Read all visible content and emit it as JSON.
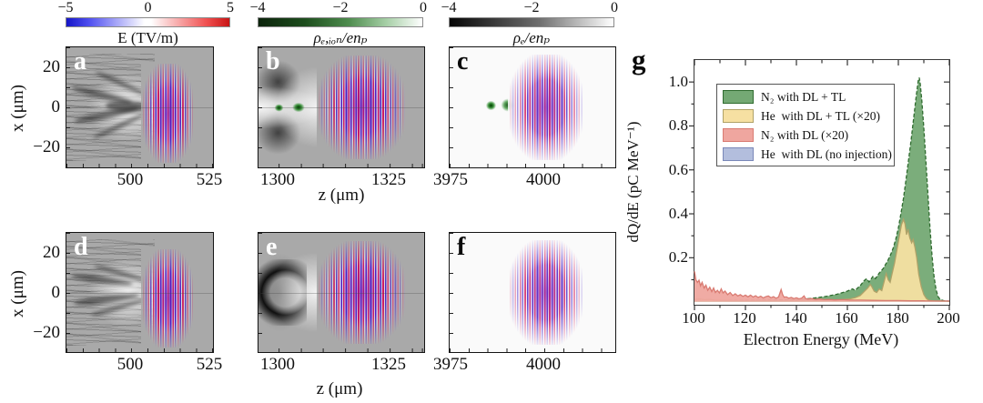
{
  "figure": {
    "colorbars": [
      {
        "ticks": [
          "−5",
          "0",
          "5"
        ],
        "label": "E (TV/m)"
      },
      {
        "ticks": [
          "−4",
          "−2",
          "0"
        ],
        "label": "ρₑ,ᵢₒₙ/enₚ"
      },
      {
        "ticks": [
          "−4",
          "−2",
          "0"
        ],
        "label": "ρₑ/enₚ"
      }
    ],
    "panels": {
      "a": {
        "label": "a",
        "x_ticks": [
          "500",
          "525"
        ],
        "y_ticks": [
          "20",
          "0",
          "−20"
        ],
        "y_label": "x (μm)"
      },
      "b": {
        "label": "b",
        "x_ticks": [
          "1300",
          "1325"
        ],
        "x_label": "z (μm)"
      },
      "c": {
        "label": "c",
        "x_ticks": [
          "3975",
          "4000"
        ]
      },
      "d": {
        "label": "d",
        "x_ticks": [
          "500",
          "525"
        ],
        "y_ticks": [
          "20",
          "0",
          "−20"
        ],
        "y_label": "x (μm)"
      },
      "e": {
        "label": "e",
        "x_ticks": [
          "1300",
          "1325"
        ],
        "x_label": "z (μm)"
      },
      "f": {
        "label": "f",
        "x_ticks": [
          "3975",
          "4000"
        ]
      },
      "g": {
        "label": "g"
      }
    }
  },
  "chart_data": {
    "type": "area",
    "title": "",
    "xlabel": "Electron Energy (MeV)",
    "ylabel": "dQ/dE (pC MeV⁻¹)",
    "xlim": [
      100,
      200
    ],
    "ylim": [
      -0.014,
      1.1
    ],
    "x_major_ticks": [
      100,
      120,
      140,
      160,
      180,
      200
    ],
    "x_minor_step": 10,
    "y_major_ticks": [
      0.2,
      0.4,
      0.6,
      0.8,
      1.0
    ],
    "y_minor_step": 0.1,
    "grid": false,
    "legend_position": "upper-left-inside",
    "legend_order": [
      1,
      2,
      3,
      0
    ],
    "series": [
      {
        "name": "He  with DL (no injection)",
        "fill": "#b3bedd",
        "edge": "#7a88b8",
        "dash": false,
        "points": [
          [
            100,
            0.003
          ],
          [
            200,
            0.003
          ]
        ]
      },
      {
        "name": "N₂ with DL + TL",
        "fill": "#74a974",
        "edge": "#2f6b2f",
        "dash": true,
        "points": [
          [
            100,
            0.004
          ],
          [
            110,
            0.005
          ],
          [
            120,
            0.006
          ],
          [
            130,
            0.007
          ],
          [
            138,
            0.009
          ],
          [
            144,
            0.013
          ],
          [
            148,
            0.018
          ],
          [
            152,
            0.025
          ],
          [
            156,
            0.034
          ],
          [
            160,
            0.048
          ],
          [
            162,
            0.058
          ],
          [
            163,
            0.052
          ],
          [
            165,
            0.072
          ],
          [
            166.5,
            0.095
          ],
          [
            167.5,
            0.105
          ],
          [
            168.5,
            0.09
          ],
          [
            170,
            0.115
          ],
          [
            171,
            0.105
          ],
          [
            172.5,
            0.13
          ],
          [
            174,
            0.15
          ],
          [
            175,
            0.17
          ],
          [
            176,
            0.19
          ],
          [
            177,
            0.215
          ],
          [
            178,
            0.245
          ],
          [
            179,
            0.285
          ],
          [
            180,
            0.335
          ],
          [
            181,
            0.4
          ],
          [
            182,
            0.47
          ],
          [
            183,
            0.555
          ],
          [
            184,
            0.645
          ],
          [
            185,
            0.735
          ],
          [
            186,
            0.835
          ],
          [
            187,
            0.935
          ],
          [
            187.8,
            1.005
          ],
          [
            188.2,
            1.02
          ],
          [
            188.6,
            0.99
          ],
          [
            189.2,
            0.915
          ],
          [
            190,
            0.79
          ],
          [
            190.8,
            0.645
          ],
          [
            191.6,
            0.49
          ],
          [
            192.4,
            0.34
          ],
          [
            193.2,
            0.21
          ],
          [
            194,
            0.115
          ],
          [
            194.8,
            0.055
          ],
          [
            195.6,
            0.022
          ],
          [
            196.5,
            0.009
          ],
          [
            198,
            0.004
          ],
          [
            200,
            0.002
          ]
        ]
      },
      {
        "name": "He  with DL + TL (×20)",
        "fill": "#f6e0a2",
        "edge": "#b0a268",
        "dash": false,
        "points": [
          [
            100,
            0.01
          ],
          [
            102,
            0.012
          ],
          [
            104,
            0.009
          ],
          [
            106,
            0.011
          ],
          [
            108,
            0.007
          ],
          [
            110,
            0.006
          ],
          [
            115,
            0.004
          ],
          [
            120,
            0.003
          ],
          [
            130,
            0.003
          ],
          [
            140,
            0.003
          ],
          [
            148,
            0.004
          ],
          [
            154,
            0.006
          ],
          [
            158,
            0.009
          ],
          [
            161,
            0.013
          ],
          [
            163,
            0.018
          ],
          [
            165,
            0.028
          ],
          [
            166.5,
            0.045
          ],
          [
            168,
            0.062
          ],
          [
            169,
            0.078
          ],
          [
            169.5,
            0.07
          ],
          [
            170.5,
            0.048
          ],
          [
            171.5,
            0.042
          ],
          [
            172.5,
            0.058
          ],
          [
            173.5,
            0.05
          ],
          [
            174.5,
            0.095
          ],
          [
            175.2,
            0.128
          ],
          [
            176,
            0.1
          ],
          [
            176.8,
            0.088
          ],
          [
            177.5,
            0.125
          ],
          [
            178.5,
            0.175
          ],
          [
            179.5,
            0.24
          ],
          [
            180.5,
            0.305
          ],
          [
            181.2,
            0.35
          ],
          [
            182,
            0.375
          ],
          [
            182.6,
            0.355
          ],
          [
            183.2,
            0.305
          ],
          [
            183.8,
            0.33
          ],
          [
            184.5,
            0.29
          ],
          [
            185.2,
            0.268
          ],
          [
            185.8,
            0.283
          ],
          [
            186.5,
            0.248
          ],
          [
            187.2,
            0.2
          ],
          [
            188,
            0.125
          ],
          [
            189,
            0.068
          ],
          [
            190,
            0.032
          ],
          [
            191,
            0.014
          ],
          [
            192,
            0.006
          ],
          [
            194,
            0.003
          ],
          [
            200,
            0.002
          ]
        ]
      },
      {
        "name": "N₂ with DL (×20)",
        "fill": "#efa69f",
        "edge": "#d97b72",
        "dash": false,
        "points": [
          [
            100,
            0.138
          ],
          [
            100.6,
            0.098
          ],
          [
            101.2,
            0.088
          ],
          [
            101.8,
            0.098
          ],
          [
            102.4,
            0.072
          ],
          [
            103,
            0.088
          ],
          [
            103.8,
            0.062
          ],
          [
            104.5,
            0.075
          ],
          [
            105.2,
            0.052
          ],
          [
            106,
            0.066
          ],
          [
            106.8,
            0.046
          ],
          [
            107.5,
            0.062
          ],
          [
            108.2,
            0.042
          ],
          [
            109,
            0.052
          ],
          [
            109.8,
            0.04
          ],
          [
            110.5,
            0.058
          ],
          [
            111.2,
            0.04
          ],
          [
            112,
            0.048
          ],
          [
            113,
            0.032
          ],
          [
            114,
            0.042
          ],
          [
            115,
            0.028
          ],
          [
            116,
            0.036
          ],
          [
            117,
            0.026
          ],
          [
            118,
            0.032
          ],
          [
            119,
            0.024
          ],
          [
            120,
            0.03
          ],
          [
            121,
            0.022
          ],
          [
            122,
            0.03
          ],
          [
            123,
            0.021
          ],
          [
            124,
            0.027
          ],
          [
            125,
            0.019
          ],
          [
            126,
            0.025
          ],
          [
            127,
            0.017
          ],
          [
            128,
            0.023
          ],
          [
            129,
            0.026
          ],
          [
            130,
            0.018
          ],
          [
            131,
            0.023
          ],
          [
            132,
            0.016
          ],
          [
            133,
            0.021
          ],
          [
            134,
            0.055
          ],
          [
            134.6,
            0.032
          ],
          [
            135.2,
            0.02
          ],
          [
            136,
            0.022
          ],
          [
            137,
            0.016
          ],
          [
            138,
            0.019
          ],
          [
            139,
            0.014
          ],
          [
            140,
            0.018
          ],
          [
            141,
            0.013
          ],
          [
            142,
            0.016
          ],
          [
            143,
            0.026
          ],
          [
            143.6,
            0.014
          ],
          [
            144.5,
            0.012
          ],
          [
            146,
            0.014
          ],
          [
            147.5,
            0.01
          ],
          [
            149,
            0.012
          ],
          [
            151,
            0.009
          ],
          [
            153,
            0.01
          ],
          [
            155,
            0.008
          ],
          [
            158,
            0.009
          ],
          [
            161,
            0.007
          ],
          [
            165,
            0.007
          ],
          [
            170,
            0.006
          ],
          [
            175,
            0.005
          ],
          [
            180,
            0.005
          ],
          [
            185,
            0.004
          ],
          [
            190,
            0.004
          ],
          [
            195,
            0.003
          ],
          [
            200,
            0.003
          ]
        ]
      }
    ]
  },
  "colors": {
    "pulse_red": "#d21e5a",
    "pulse_blue": "#4623c8",
    "panel_gray": "#a9a9a9",
    "panel_light": "#fafafa",
    "field_neg": "#1515c8",
    "field_pos": "#c81515",
    "ion_green": "#0b230b"
  }
}
